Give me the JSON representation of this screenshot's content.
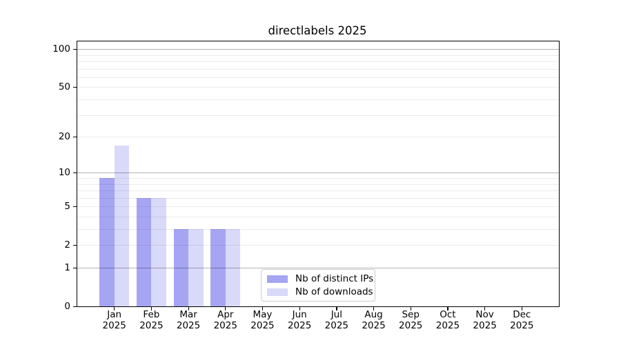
{
  "chart_data": {
    "type": "bar",
    "title": "directlabels 2025",
    "categories": [
      "Jan",
      "Feb",
      "Mar",
      "Apr",
      "May",
      "Jun",
      "Jul",
      "Aug",
      "Sep",
      "Oct",
      "Nov",
      "Dec"
    ],
    "xtick_second_line": "2025",
    "series": [
      {
        "name": "Nb of distinct IPs",
        "color": "#a5a5f3",
        "values": [
          9,
          6,
          3,
          3,
          0,
          0,
          0,
          0,
          0,
          0,
          0,
          0
        ]
      },
      {
        "name": "Nb of downloads",
        "color": "#d9d9fa",
        "values": [
          17,
          6,
          3,
          3,
          0,
          0,
          0,
          0,
          0,
          0,
          0,
          0
        ]
      }
    ],
    "yscale": "log1p",
    "ylim": [
      0,
      115
    ],
    "xlim_units": [
      -1,
      12
    ],
    "bar_width_fraction": 0.4,
    "yticks": [
      0,
      1,
      2,
      5,
      10,
      20,
      50,
      100
    ],
    "grid": {
      "major": [
        1,
        10,
        100
      ],
      "minor": [
        2,
        3,
        4,
        5,
        6,
        7,
        8,
        9,
        20,
        30,
        40,
        50,
        60,
        70,
        80,
        90
      ],
      "major_color": "rgba(0,0,0,0.30)",
      "minor_color": "rgba(0,0,0,0.08)"
    },
    "legend_position": "lower center"
  }
}
